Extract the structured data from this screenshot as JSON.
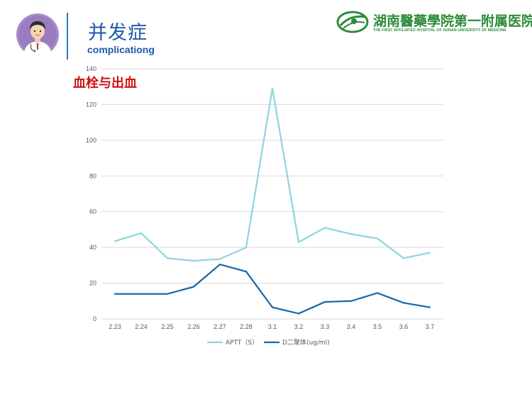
{
  "header": {
    "title": "并发症",
    "subtitle": "complicationg"
  },
  "logo": {
    "name": "湖南醫藥學院第一附属医院",
    "subtitle": "THE FIRST AFFILIATED HOSPITAL OF HUNAN UNIVERSITY OF MEDICINE",
    "color": "#2e8b3a"
  },
  "section_title": "血栓与出血",
  "chart_data": {
    "type": "line",
    "categories": [
      "2.23",
      "2.24",
      "2.25",
      "2.26",
      "2.27",
      "2.28",
      "3.1",
      "3.2",
      "3.3",
      "3.4",
      "3.5",
      "3.6",
      "3.7"
    ],
    "ylim": [
      0,
      140
    ],
    "yticks": [
      0,
      20,
      40,
      60,
      80,
      100,
      120,
      140
    ],
    "grid": true,
    "legend_position": "bottom",
    "series": [
      {
        "name": "APTT（S）",
        "color": "#8fd6dc",
        "values": [
          43.5,
          48,
          34,
          32.5,
          33.5,
          40,
          129,
          43,
          51,
          47.5,
          45,
          34,
          37
        ]
      },
      {
        "name": "D二聚体(ug/ml)",
        "color": "#1b6aa8",
        "values": [
          14,
          14,
          14,
          18,
          30.5,
          26.5,
          6.5,
          3,
          9.5,
          10,
          14.5,
          9,
          6.5
        ]
      }
    ]
  }
}
